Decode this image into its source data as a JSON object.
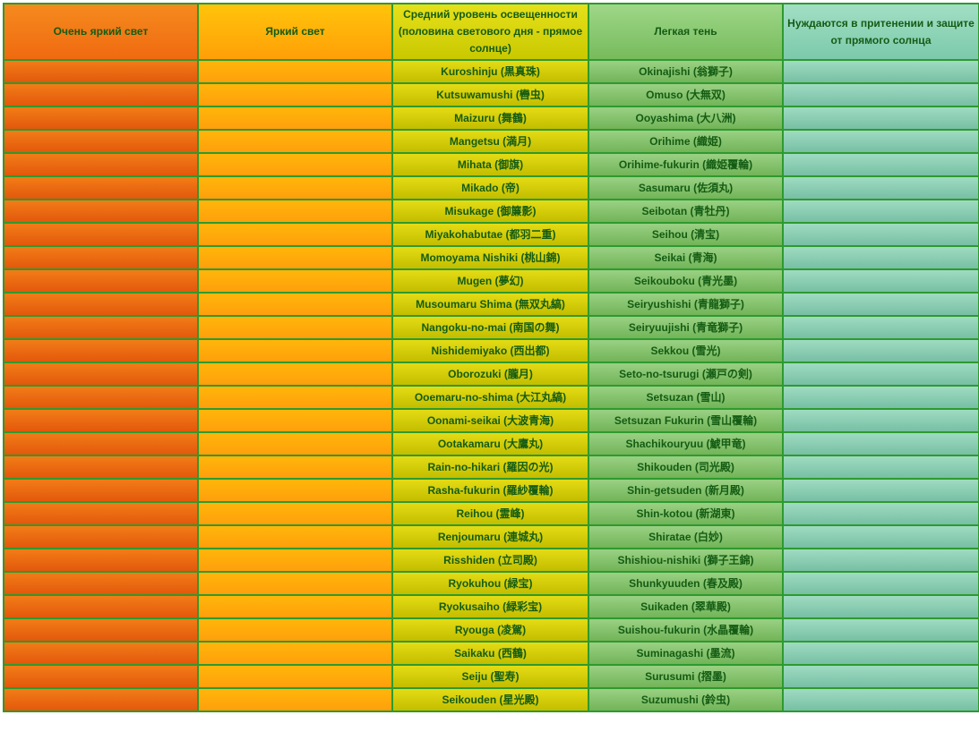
{
  "table": {
    "headers": [
      "Очень яркий свет",
      "Яркий свет",
      "Средний уровень освещенности (половина светового дня - прямое солнце)",
      "Легкая тень",
      "Нуждаются в притенении и защите от прямого солнца"
    ],
    "rows": [
      [
        "",
        "",
        "Kuroshinju (黒真珠)",
        "Okinajishi (翁獅子)",
        ""
      ],
      [
        "",
        "",
        "Kutsuwamushi (轡虫)",
        "Omuso (大無双)",
        ""
      ],
      [
        "",
        "",
        "Maizuru (舞鶴)",
        "Ooyashima (大八洲)",
        ""
      ],
      [
        "",
        "",
        "Mangetsu (満月)",
        "Orihime (織姫)",
        ""
      ],
      [
        "",
        "",
        "Mihata (御旗)",
        "Orihime-fukurin (織姫覆輪)",
        ""
      ],
      [
        "",
        "",
        "Mikado (帝)",
        "Sasumaru (佐須丸)",
        ""
      ],
      [
        "",
        "",
        "Misukage (御簾影)",
        "Seibotan (青牡丹)",
        ""
      ],
      [
        "",
        "",
        "Miyakohabutae (都羽二重)",
        "Seihou (清宝)",
        ""
      ],
      [
        "",
        "",
        "Momoyama Nishiki (桃山錦)",
        "Seikai (青海)",
        ""
      ],
      [
        "",
        "",
        "Mugen (夢幻)",
        "Seikouboku (青光墨)",
        ""
      ],
      [
        "",
        "",
        "Musoumaru Shima (無双丸縞)",
        "Seiryushishi (青龍獅子)",
        ""
      ],
      [
        "",
        "",
        "Nangoku-no-mai (南国の舞)",
        "Seiryuujishi (青竜獅子)",
        ""
      ],
      [
        "",
        "",
        "Nishidemiyako (西出都)",
        "Sekkou (雪光)",
        ""
      ],
      [
        "",
        "",
        "Oborozuki (朧月)",
        "Seto-no-tsurugi (瀬戸の剣)",
        ""
      ],
      [
        "",
        "",
        "Ooemaru-no-shima (大江丸縞)",
        "Setsuzan (雪山)",
        ""
      ],
      [
        "",
        "",
        "Oonami-seikai (大波青海)",
        "Setsuzan Fukurin (雪山覆輪)",
        ""
      ],
      [
        "",
        "",
        "Ootakamaru (大鷹丸)",
        "Shachikouryuu (鯱甲竜)",
        ""
      ],
      [
        "",
        "",
        "Rain-no-hikari (羅因の光)",
        "Shikouden (司光殿)",
        ""
      ],
      [
        "",
        "",
        "Rasha-fukurin (羅紗覆輪)",
        "Shin-getsuden (新月殿)",
        ""
      ],
      [
        "",
        "",
        "Reihou (霊峰)",
        "Shin-kotou (新湖東)",
        ""
      ],
      [
        "",
        "",
        "Renjoumaru (連城丸)",
        "Shiratae (白妙)",
        ""
      ],
      [
        "",
        "",
        "Risshiden (立司殿)",
        "Shishiou-nishiki (獅子王錦)",
        ""
      ],
      [
        "",
        "",
        "Ryokuhou (緑宝)",
        "Shunkyuuden (春及殿)",
        ""
      ],
      [
        "",
        "",
        "Ryokusaiho (緑彩宝)",
        "Suikaden (翠華殿)",
        ""
      ],
      [
        "",
        "",
        "Ryouga (凌駕)",
        "Suishou-fukurin (水晶覆輪)",
        ""
      ],
      [
        "",
        "",
        "Saikaku (西鶴)",
        "Suminagashi (墨流)",
        ""
      ],
      [
        "",
        "",
        "Seiju (聖寿)",
        "Surusumi (摺墨)",
        ""
      ],
      [
        "",
        "",
        "Seikouden (星光殿)",
        "Suzumushi (鈴虫)",
        ""
      ]
    ]
  },
  "colors": {
    "border": "#2e9a2e",
    "text": "#145c14",
    "very_bright": "#f06a10",
    "bright": "#ff9f08",
    "medium": "#c9c900",
    "light_shade": "#76bb5c",
    "shade": "#7cc9ab"
  }
}
